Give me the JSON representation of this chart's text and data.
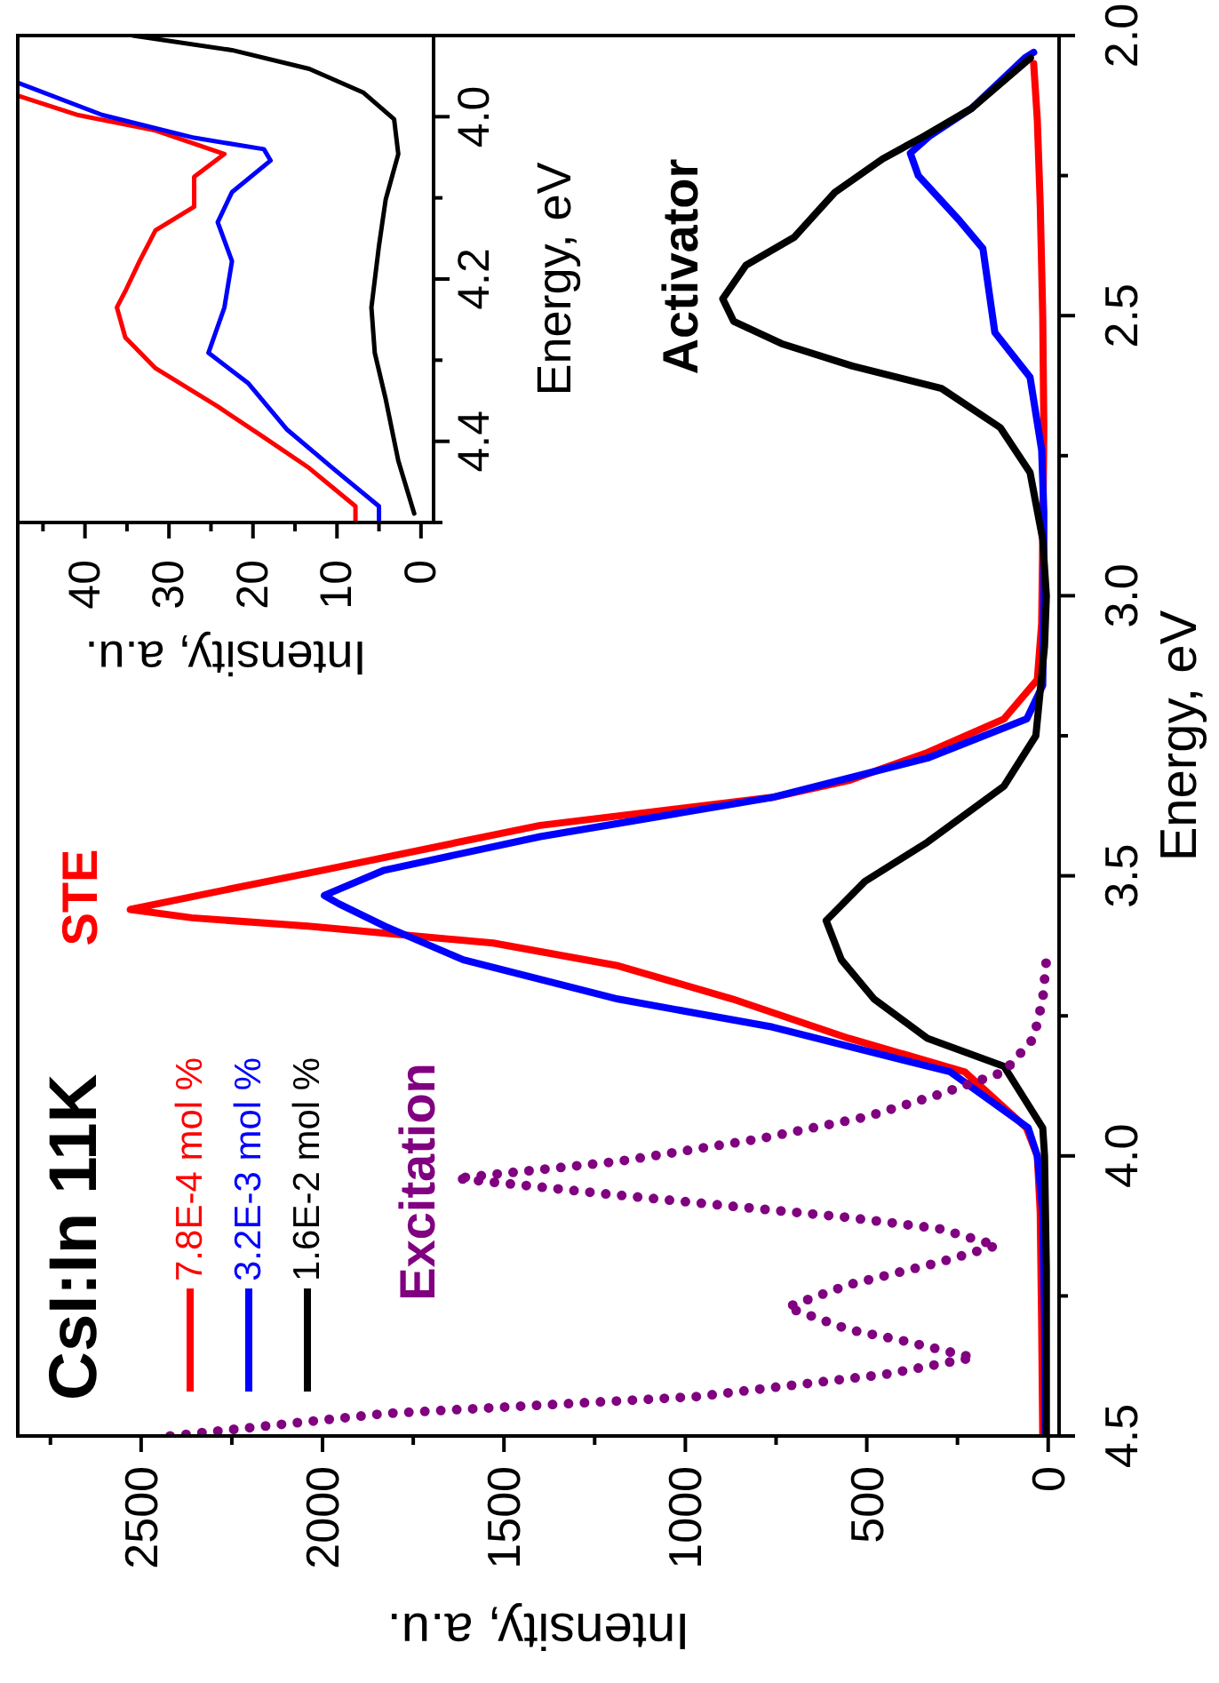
{
  "chart_data": [
    {
      "type": "line",
      "title": "CsI:In 11K",
      "xlabel": "Intensity, a.u.",
      "ylabel": "Energy, eV",
      "xlim": [
        2840,
        -30
      ],
      "ylim": [
        4.5,
        2.0
      ],
      "yticks": [
        {
          "value": 4.5,
          "label": "4.5"
        },
        {
          "value": 4.25,
          "label": null
        },
        {
          "value": 4.0,
          "label": "4.0"
        },
        {
          "value": 3.75,
          "label": null
        },
        {
          "value": 3.5,
          "label": "3.5"
        },
        {
          "value": 3.25,
          "label": null
        },
        {
          "value": 3.0,
          "label": "3.0"
        },
        {
          "value": 2.75,
          "label": null
        },
        {
          "value": 2.5,
          "label": "2.5"
        },
        {
          "value": 2.25,
          "label": null
        },
        {
          "value": 2.0,
          "label": "2.0"
        }
      ],
      "xticks": [
        {
          "value": 2750,
          "label": null
        },
        {
          "value": 2500,
          "label": "2500"
        },
        {
          "value": 2250,
          "label": null
        },
        {
          "value": 2000,
          "label": "2000"
        },
        {
          "value": 1750,
          "label": null
        },
        {
          "value": 1500,
          "label": "1500"
        },
        {
          "value": 1250,
          "label": null
        },
        {
          "value": 1000,
          "label": "1000"
        },
        {
          "value": 750,
          "label": null
        },
        {
          "value": 500,
          "label": "500"
        },
        {
          "value": 250,
          "label": null
        },
        {
          "value": 0,
          "label": "0"
        }
      ],
      "legend": "bottom left",
      "line_style": "solid",
      "annotations": [
        "STE",
        "Activator",
        "Excitation"
      ],
      "series": [
        {
          "name": "7.8E-4 mol %",
          "color": "#ff0000",
          "values": [
            4.5,
            4.3,
            4.1,
            4.0,
            3.95,
            3.85,
            3.79,
            3.72,
            3.66,
            3.62,
            3.59,
            3.575,
            3.56,
            3.54,
            3.49,
            3.41,
            3.36,
            3.33,
            3.28,
            3.22,
            3.15,
            3.05,
            2.9,
            2.7,
            2.5,
            2.3,
            2.15,
            2.05
          ],
          "x": [
            15,
            18,
            22,
            30,
            60,
            230,
            550,
            870,
            1190,
            1530,
            2040,
            2360,
            2530,
            2380,
            2000,
            1400,
            760,
            550,
            333,
            122,
            30,
            18,
            15,
            12,
            15,
            22,
            30,
            40
          ]
        },
        {
          "name": "3.2E-3 mol %",
          "color": "#0000ff",
          "values": [
            4.5,
            4.3,
            4.1,
            4.0,
            3.95,
            3.85,
            3.77,
            3.72,
            3.65,
            3.59,
            3.55,
            3.535,
            3.49,
            3.43,
            3.36,
            3.29,
            3.22,
            3.16,
            3.0,
            2.85,
            2.74,
            2.61,
            2.53,
            2.38,
            2.33,
            2.25,
            2.21,
            2.18,
            2.13,
            2.04,
            2.03
          ],
          "x": [
            8,
            10,
            15,
            30,
            55,
            270,
            760,
            1186,
            1612,
            1828,
            1955,
            1995,
            1830,
            1400,
            760,
            333,
            59,
            15,
            12,
            12,
            18,
            50,
            147,
            180,
            245,
            358,
            380,
            328,
            211,
            64,
            40
          ]
        },
        {
          "name": "1.6E-2 mol %",
          "color": "#000000",
          "values": [
            4.5,
            4.2,
            4.0,
            3.95,
            3.84,
            3.79,
            3.72,
            3.65,
            3.58,
            3.51,
            3.44,
            3.34,
            3.25,
            3.09,
            3.0,
            2.9,
            2.78,
            2.7,
            2.63,
            2.59,
            2.55,
            2.51,
            2.47,
            2.41,
            2.36,
            2.28,
            2.22,
            2.18,
            2.13,
            2.04
          ],
          "x": [
            5,
            5,
            10,
            15,
            122,
            333,
            480,
            570,
            612,
            505,
            333,
            122,
            34,
            10,
            5,
            15,
            50,
            132,
            294,
            540,
            735,
            867,
            897,
            833,
            700,
            588,
            456,
            343,
            211,
            49
          ]
        },
        {
          "color": "#800080",
          "line_style": "dotted",
          "values": [
            4.5,
            4.46,
            4.43,
            4.39,
            4.36,
            4.33,
            4.31,
            4.27,
            4.23,
            4.19,
            4.16,
            4.13,
            4.11,
            4.07,
            4.04,
            4.01,
            3.97,
            3.93,
            3.89,
            3.85,
            3.79,
            3.72,
            3.65
          ],
          "x": [
            2420,
            1830,
            975,
            450,
            206,
            400,
            550,
            720,
            550,
            300,
            142,
            300,
            550,
            1186,
            1632,
            1186,
            800,
            500,
            300,
            122,
            40,
            15,
            5
          ]
        }
      ]
    },
    {
      "type": "line",
      "xlabel": "Intensity, a.u.",
      "ylabel": "Energy, eV",
      "xlim": [
        48,
        -1.5
      ],
      "ylim": [
        4.5,
        3.9
      ],
      "yticks": [
        {
          "value": 4.5,
          "label": null
        },
        {
          "value": 4.4,
          "label": "4.4"
        },
        {
          "value": 4.3,
          "label": null
        },
        {
          "value": 4.2,
          "label": "4.2"
        },
        {
          "value": 4.1,
          "label": null
        },
        {
          "value": 4.0,
          "label": "4.0"
        },
        {
          "value": 3.9,
          "label": null
        }
      ],
      "xticks": [
        {
          "value": 45,
          "label": null
        },
        {
          "value": 40,
          "label": "40"
        },
        {
          "value": 35,
          "label": null
        },
        {
          "value": 30,
          "label": "30"
        },
        {
          "value": 25,
          "label": null
        },
        {
          "value": 20,
          "label": "20"
        },
        {
          "value": 15,
          "label": null
        },
        {
          "value": 10,
          "label": "10"
        },
        {
          "value": 5,
          "label": null
        },
        {
          "value": 0,
          "label": "0"
        }
      ],
      "line_style": "solid",
      "series": [
        {
          "color": "#ff0000",
          "values": [
            4.497,
            4.48,
            4.433,
            4.395,
            4.357,
            4.31,
            4.272,
            4.235,
            4.215,
            4.178,
            4.14,
            4.111,
            4.074,
            4.046,
            4.017,
            3.998,
            3.974
          ],
          "x": [
            7.8,
            7.8,
            13.3,
            18.7,
            24.2,
            31.6,
            35.2,
            36.2,
            35.2,
            33.5,
            31.6,
            27,
            27,
            23.4,
            31.6,
            40.8,
            48
          ]
        },
        {
          "color": "#0000ff",
          "values": [
            4.497,
            4.48,
            4.433,
            4.385,
            4.328,
            4.291,
            4.235,
            4.178,
            4.13,
            4.093,
            4.054,
            4.04,
            4.026,
            3.998,
            3.958
          ],
          "x": [
            5,
            5,
            10.5,
            16,
            20.6,
            25.3,
            23.4,
            22.5,
            24.2,
            22.5,
            17.9,
            18.7,
            27,
            37.9,
            48
          ]
        },
        {
          "color": "#000000",
          "values": [
            4.489,
            4.424,
            4.348,
            4.291,
            4.235,
            4.159,
            4.102,
            4.046,
            4.003,
            3.97,
            3.941,
            3.918,
            3.9
          ],
          "x": [
            0.8,
            2.7,
            4.2,
            5.5,
            5.9,
            5,
            4.2,
            2.7,
            3.2,
            6.9,
            13.3,
            22.5,
            34.3
          ]
        }
      ]
    }
  ]
}
